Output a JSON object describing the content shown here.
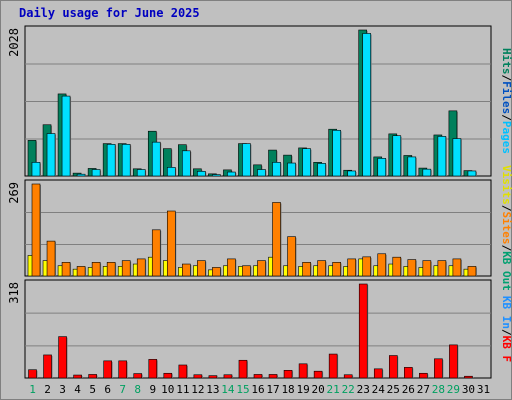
{
  "title": "Daily usage for June 2025",
  "colors": {
    "background": "#c0c0c0",
    "hits": "#00805c",
    "files": "#00c0ff",
    "pages": "#00e0ff",
    "visits": "#ffff00",
    "sites": "#ff8000",
    "kbin": "#2090ff",
    "kbout": "#00a070",
    "kbf": "#ff0000",
    "title": "#0000c0"
  },
  "side_labels": {
    "panel1": [
      "Hits",
      "/",
      "Files",
      "/",
      "Pages"
    ],
    "panel2": [
      "Visits",
      "/",
      "Sites",
      "/",
      "KB Out"
    ],
    "panel3": [
      "KB In",
      "/",
      "KB F"
    ]
  },
  "y_max_labels": {
    "panel1": "2028",
    "panel2": "269",
    "panel3": "318"
  },
  "chart_data": {
    "type": "bar",
    "title": "Daily usage for June 2025",
    "days": [
      "1",
      "2",
      "3",
      "4",
      "5",
      "6",
      "7",
      "8",
      "9",
      "10",
      "11",
      "12",
      "13",
      "14",
      "15",
      "16",
      "17",
      "18",
      "19",
      "20",
      "21",
      "22",
      "23",
      "24",
      "25",
      "26",
      "27",
      "28",
      "29",
      "30",
      "31"
    ],
    "weekend_days": [
      "1",
      "7",
      "8",
      "14",
      "15",
      "21",
      "22",
      "28",
      "29"
    ],
    "panels": [
      {
        "name": "hits-files-pages",
        "ymax": 2028,
        "series": [
          {
            "name": "Hits",
            "values": [
              495,
              712,
              1140,
              40,
              105,
              450,
              450,
              100,
              622,
              380,
              435,
              100,
              30,
              85,
              450,
              155,
              360,
              290,
              390,
              190,
              650,
              80,
              2028,
              265,
              585,
              285,
              110,
              570,
              905,
              75,
              0
            ]
          },
          {
            "name": "Files",
            "values": [
              190,
              590,
              1110,
              25,
              90,
              440,
              440,
              90,
              470,
              120,
              350,
              65,
              20,
              55,
              450,
              90,
              190,
              180,
              380,
              175,
              635,
              70,
              1980,
              245,
              560,
              265,
              95,
              550,
              520,
              70,
              0
            ]
          }
        ]
      },
      {
        "name": "visits-sites",
        "ymax": 269,
        "series": [
          {
            "name": "Visits",
            "values": [
              60,
              45,
              30,
              20,
              25,
              28,
              28,
              35,
              55,
              45,
              25,
              30,
              18,
              30,
              28,
              30,
              55,
              30,
              28,
              30,
              30,
              28,
              50,
              30,
              35,
              28,
              25,
              30,
              30,
              20,
              0
            ]
          },
          {
            "name": "Sites",
            "values": [
              269,
              102,
              40,
              28,
              40,
              40,
              45,
              50,
              135,
              190,
              35,
              45,
              25,
              50,
              30,
              45,
              215,
              115,
              40,
              45,
              40,
              50,
              56,
              65,
              55,
              48,
              45,
              45,
              50,
              28,
              0
            ]
          }
        ]
      },
      {
        "name": "kbf",
        "ymax": 318,
        "series": [
          {
            "name": "KB F",
            "values": [
              28,
              78,
              140,
              10,
              12,
              58,
              58,
              15,
              63,
              16,
              44,
              11,
              8,
              11,
              60,
              12,
              12,
              26,
              48,
              23,
              81,
              11,
              318,
              31,
              76,
              36,
              16,
              65,
              112,
              6,
              0
            ]
          }
        ]
      }
    ]
  }
}
